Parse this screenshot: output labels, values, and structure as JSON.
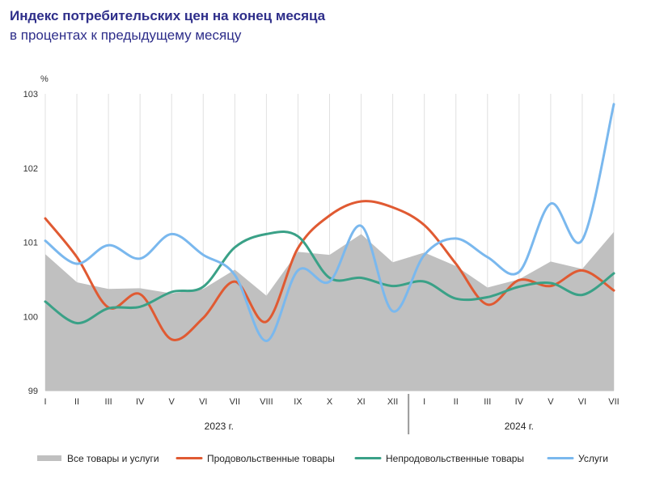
{
  "colors": {
    "title": "#2e2e8a",
    "all": "#c0c0c0",
    "food": "#e05a32",
    "nonfood": "#3aa187",
    "services": "#7ab8ee",
    "grid": "#e0e0e0",
    "year_divider": "#9a9a9a"
  },
  "chart_data": {
    "type": "line",
    "title": "Индекс потребительских цен на конец месяца",
    "subtitle": "в процентах к предыдущему месяцу",
    "ylabel": "%",
    "ylim": [
      99,
      103
    ],
    "yticks": [
      "99",
      "100",
      "101",
      "102",
      "103"
    ],
    "grid": "vertical",
    "legend_position": "bottom",
    "categories": [
      "I",
      "II",
      "III",
      "IV",
      "V",
      "VI",
      "VII",
      "VIII",
      "IX",
      "X",
      "XI",
      "XII",
      "I",
      "II",
      "III",
      "IV",
      "V",
      "VI",
      "VII"
    ],
    "year_labels": [
      {
        "label": "2023 г.",
        "from": 0,
        "to": 11
      },
      {
        "label": "2024 г.",
        "from": 12,
        "to": 18
      }
    ],
    "series": [
      {
        "name": "Все товары и услуги",
        "kind": "area",
        "color_key": "all",
        "values": [
          100.84,
          100.46,
          100.37,
          100.38,
          100.31,
          100.37,
          100.63,
          100.28,
          100.87,
          100.83,
          101.11,
          100.73,
          100.86,
          100.68,
          100.39,
          100.5,
          100.74,
          100.64,
          101.14
        ]
      },
      {
        "name": "Продовольственные товары",
        "kind": "line",
        "color_key": "food",
        "values": [
          101.32,
          100.8,
          100.12,
          100.3,
          99.69,
          99.98,
          100.47,
          99.93,
          100.92,
          101.36,
          101.55,
          101.47,
          101.23,
          100.71,
          100.16,
          100.49,
          100.41,
          100.62,
          100.35
        ]
      },
      {
        "name": "Непродовольственные товары",
        "kind": "line",
        "color_key": "nonfood",
        "values": [
          100.2,
          99.91,
          100.11,
          100.13,
          100.33,
          100.4,
          100.93,
          101.11,
          101.08,
          100.52,
          100.52,
          100.41,
          100.47,
          100.24,
          100.26,
          100.4,
          100.45,
          100.29,
          100.58
        ]
      },
      {
        "name": "Услуги",
        "kind": "line",
        "color_key": "services",
        "values": [
          101.02,
          100.71,
          100.96,
          100.78,
          101.11,
          100.83,
          100.56,
          99.67,
          100.62,
          100.47,
          101.22,
          100.07,
          100.83,
          101.05,
          100.8,
          100.6,
          101.52,
          101.03,
          102.86
        ]
      }
    ]
  }
}
